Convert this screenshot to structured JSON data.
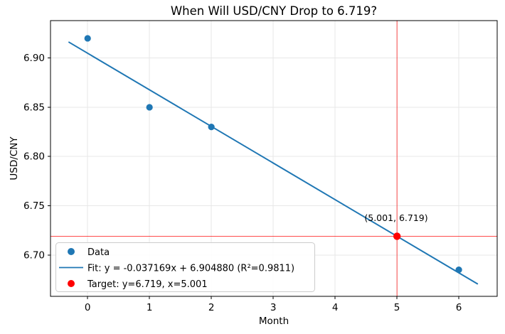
{
  "chart_data": {
    "type": "scatter",
    "title": "When Will USD/CNY Drop to 6.719?",
    "xlabel": "Month",
    "ylabel": "USD/CNY",
    "xlim": [
      -0.6,
      6.62
    ],
    "ylim": [
      6.658,
      6.938
    ],
    "xticks": [
      0,
      1,
      2,
      3,
      4,
      5,
      6
    ],
    "yticks": [
      6.7,
      6.75,
      6.8,
      6.85,
      6.9
    ],
    "grid": true,
    "legend_position": "lower left",
    "series": [
      {
        "name": "Data",
        "kind": "scatter",
        "color": "#1f77b4",
        "x": [
          0,
          1,
          2,
          6
        ],
        "y": [
          6.92,
          6.85,
          6.83,
          6.685
        ]
      },
      {
        "name": "Fit: y = -0.037169x + 6.904880 (R²=0.9811)",
        "kind": "line",
        "color": "#1f77b4",
        "slope": -0.037169,
        "intercept": 6.90488,
        "x_range": [
          -0.3,
          6.3
        ]
      },
      {
        "name": "Target: y=6.719, x=5.001",
        "kind": "point",
        "color": "#ff0000",
        "x": [
          5.001
        ],
        "y": [
          6.719
        ]
      }
    ],
    "crosshair": {
      "x": 5.001,
      "y": 6.719,
      "color": "#ff0000"
    },
    "annotation": {
      "text": "(5.001, 6.719)",
      "x": 5.001,
      "y": 6.735,
      "color": "#ff0000"
    },
    "colors": {
      "grid": "#e7e7e7",
      "spine": "#000000",
      "accent_blue": "#1f77b4",
      "accent_red": "#ff0000"
    }
  }
}
